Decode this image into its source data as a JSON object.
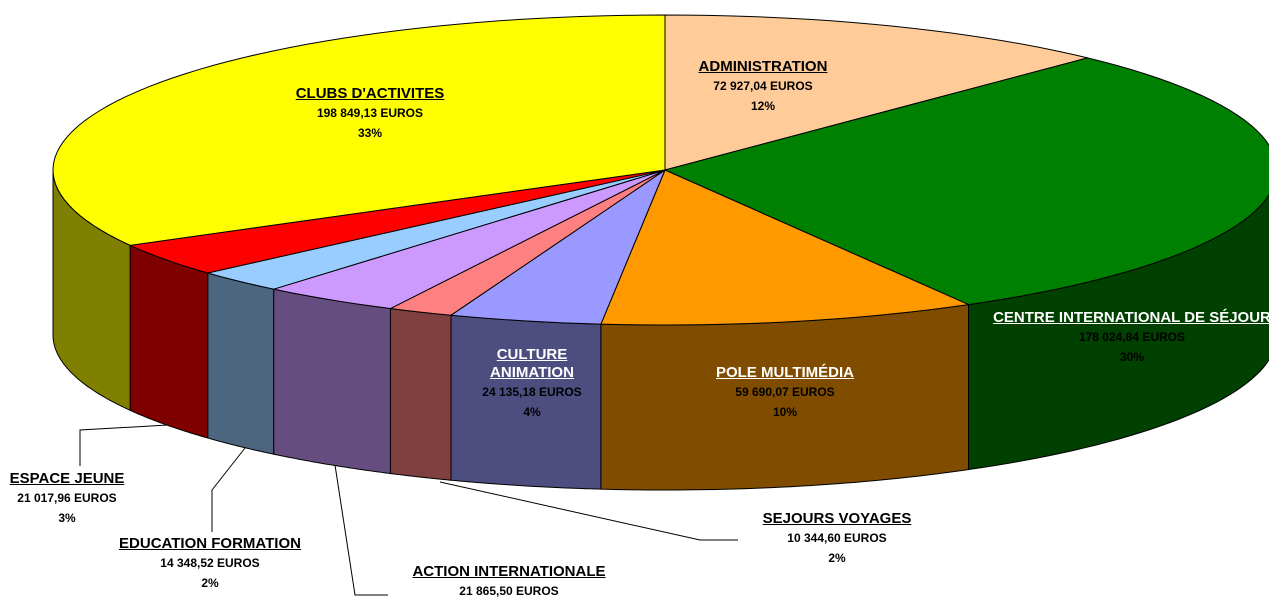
{
  "chart_data": {
    "type": "pie3d",
    "categories": [
      "ADMINISTRATION",
      "CENTRE INTERNATIONAL DE SÉJOUR",
      "POLE MULTIMÉDIA",
      "CULTURE ANIMATION",
      "SEJOURS VOYAGES",
      "ACTION INTERNATIONALE",
      "EDUCATION FORMATION",
      "ESPACE JEUNE",
      "CLUBS D'ACTIVITES"
    ],
    "values": [
      72927.04,
      178024.84,
      59690.07,
      24135.18,
      10344.6,
      21865.5,
      14348.52,
      21017.96,
      198849.13
    ],
    "value_labels": [
      "72 927,04 EUROS",
      "178 024,84 EUROS",
      "59 690,07 EUROS",
      "24 135,18 EUROS",
      "10 344,60 EUROS",
      "21 865,50 EUROS",
      "14 348,52 EUROS",
      "21 017,96 EUROS",
      "198 849,13 EUROS"
    ],
    "percent_labels": [
      "12%",
      "30%",
      "10%",
      "4%",
      "2%",
      null,
      "2%",
      "3%",
      "33%"
    ],
    "colors": [
      "#ffcc99",
      "#008000",
      "#ff9900",
      "#9999ff",
      "#ff8080",
      "#cc99ff",
      "#99ccff",
      "#ff0000",
      "#ffff00"
    ]
  }
}
